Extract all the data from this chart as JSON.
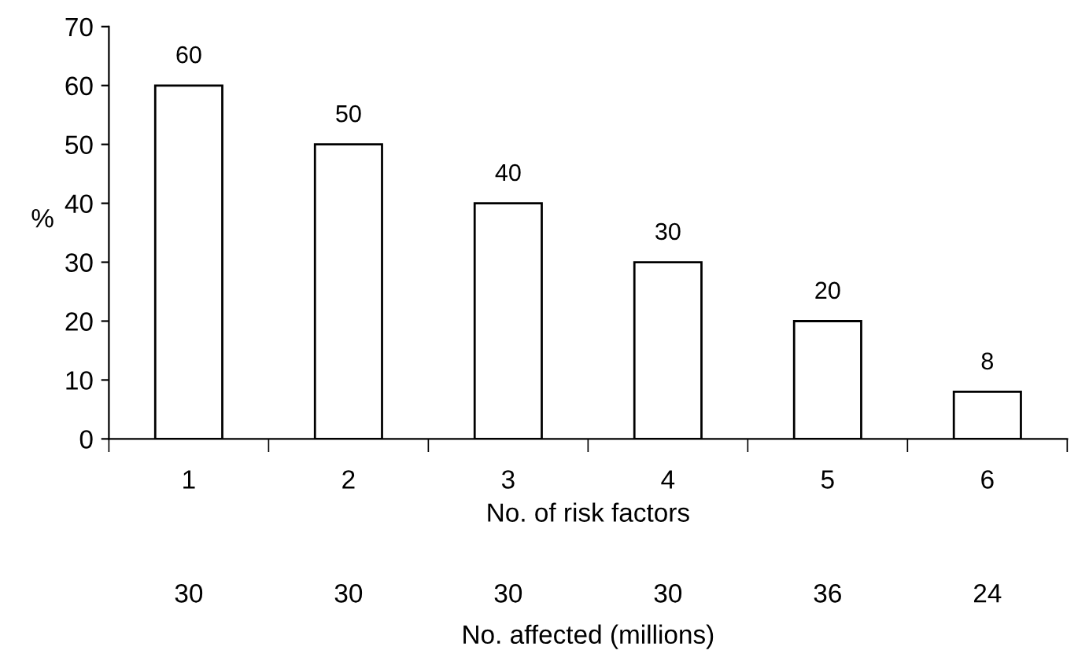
{
  "chart_data": {
    "type": "bar",
    "categories": [
      "1",
      "2",
      "3",
      "4",
      "5",
      "6"
    ],
    "values": [
      60,
      50,
      40,
      30,
      20,
      8
    ],
    "color": "#ffffff",
    "data_labels": true,
    "ylim": [
      0,
      70
    ],
    "yticks": [
      0,
      10,
      20,
      30,
      40,
      50,
      60,
      70
    ],
    "ylabel": "%",
    "xlabel": "No. of risk factors",
    "grid": false,
    "annotations": [
      "30",
      "30",
      "30",
      "30",
      "36",
      "24",
      "No. affected (millions)"
    ]
  }
}
